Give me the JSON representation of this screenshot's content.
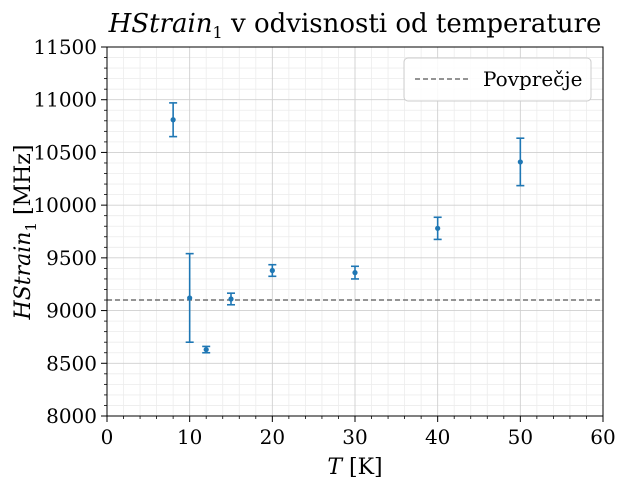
{
  "chart_data": {
    "type": "scatter",
    "title": {
      "var": "HStrain",
      "sub": "1",
      "rest": " v odvisnosti od temperature"
    },
    "xlabel": {
      "var": "T",
      "rest": " [K]"
    },
    "ylabel": {
      "var": "HStrain",
      "sub": "1",
      "rest": " [MHz]"
    },
    "xlim": [
      0,
      60
    ],
    "ylim": [
      8000,
      11500
    ],
    "x_ticks": [
      0,
      10,
      20,
      30,
      40,
      50,
      60
    ],
    "x_tick_labels": [
      "0",
      "10",
      "20",
      "30",
      "40",
      "50",
      "60"
    ],
    "y_ticks": [
      8000,
      8500,
      9000,
      9500,
      10000,
      10500,
      11000,
      11500
    ],
    "y_tick_labels": [
      "8000",
      "8500",
      "9000",
      "9500",
      "10000",
      "10500",
      "11000",
      "11500"
    ],
    "grid": true,
    "minor_grid": true,
    "series": [
      {
        "color": "#1f77b4",
        "x": [
          8,
          10,
          12,
          15,
          20,
          30,
          40,
          50
        ],
        "y": [
          10810,
          9120,
          8630,
          9110,
          9380,
          9360,
          9780,
          10410
        ],
        "yerr": [
          160,
          420,
          30,
          55,
          55,
          60,
          105,
          225
        ]
      }
    ],
    "hlines": [
      {
        "y": 9100,
        "style": "dashed",
        "color": "#555555",
        "label": "Povprečje"
      }
    ],
    "legend": {
      "position": "top-right",
      "entries": [
        "Povprečje"
      ]
    }
  }
}
